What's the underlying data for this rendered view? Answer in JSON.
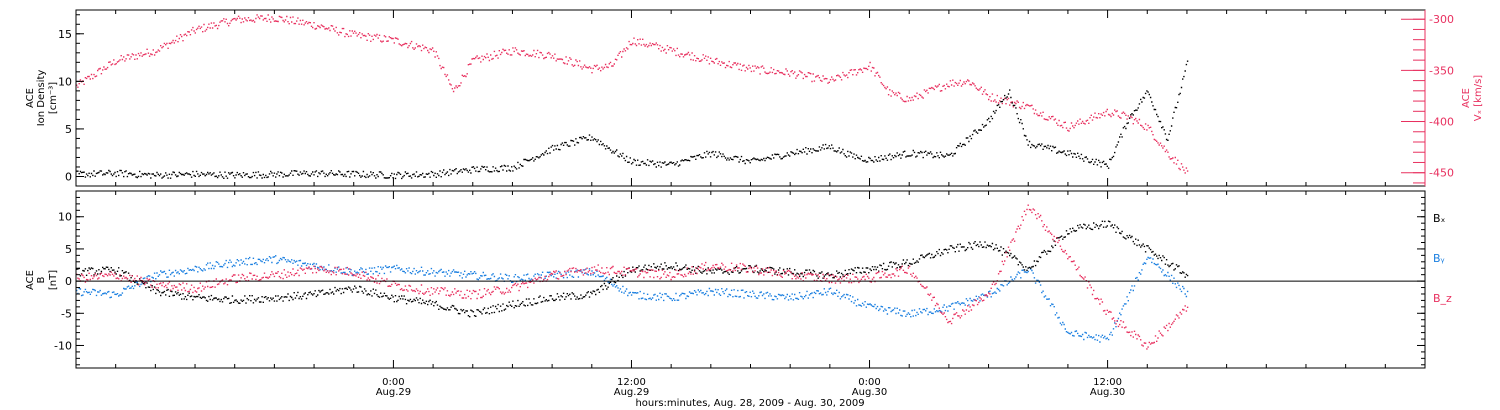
{
  "colors": {
    "black": "#000000",
    "pink": "#e8305f",
    "blue": "#1a7fe0"
  },
  "x_axis": {
    "title": "hours:minutes, Aug. 28, 2009 - Aug. 30, 2009",
    "range_hours": [
      -16,
      52
    ],
    "major_ticks": [
      {
        "hours": 0,
        "time": "0:00",
        "date": "Aug.29"
      },
      {
        "hours": 12,
        "time": "12:00",
        "date": "Aug.29"
      },
      {
        "hours": 24,
        "time": "0:00",
        "date": "Aug.30"
      },
      {
        "hours": 36,
        "time": "12:00",
        "date": "Aug.30"
      }
    ],
    "minor_step_hours": 2
  },
  "panels": {
    "top": {
      "left_axis": {
        "l1": "ACE",
        "l2": "Ion Density",
        "l3": "[cm⁻³]",
        "ticks": [
          "0",
          "5",
          "10",
          "15"
        ],
        "tick_values": [
          0,
          5,
          10,
          15
        ],
        "range": [
          -1,
          17.5
        ]
      },
      "right_axis": {
        "l1": "ACE",
        "l2": "Vₓ [km/s]",
        "ticks": [
          "-300",
          "-350",
          "-400",
          "-450"
        ],
        "tick_values": [
          -300,
          -350,
          -400,
          -450
        ],
        "range": [
          -463,
          -291
        ]
      }
    },
    "bottom": {
      "left_axis": {
        "l1": "ACE",
        "l2": "B",
        "l3": "[nT]",
        "ticks": [
          "10",
          "5",
          "0",
          "-5",
          "-10"
        ],
        "tick_values": [
          10,
          5,
          0,
          -5,
          -10
        ],
        "range": [
          -13.5,
          14
        ]
      },
      "legend": [
        {
          "label": "Bₓ",
          "color": "#000000"
        },
        {
          "label": "Bᵧ",
          "color": "#1a7fe0"
        },
        {
          "label": "B_z",
          "color": "#e8305f"
        }
      ]
    }
  },
  "chart_data": [
    {
      "type": "scatter",
      "title": "",
      "xlabel": "hours:minutes, Aug. 28, 2009 - Aug. 30, 2009",
      "ylabel": "ACE Ion Density [cm⁻³]",
      "ylim": [
        -1,
        17.5
      ],
      "y2label": "ACE Vₓ [km/s]",
      "y2lim": [
        -463,
        -291
      ],
      "series": [
        {
          "name": "Ion Density",
          "color": "#000000",
          "axis": "left",
          "x": [
            -16,
            -14,
            -12,
            -10,
            -8,
            -6,
            -4,
            -2,
            0,
            2,
            4,
            6,
            8,
            10,
            11,
            12,
            14,
            16,
            18,
            20,
            22,
            23,
            24,
            26,
            28,
            30,
            31,
            32,
            34,
            36,
            37,
            38,
            39,
            40
          ],
          "y": [
            0.3,
            0.4,
            0.2,
            0.3,
            0.2,
            0.3,
            0.4,
            0.3,
            0.2,
            0.3,
            0.8,
            1.0,
            3.0,
            4.2,
            2.8,
            1.6,
            1.3,
            2.5,
            1.6,
            2.5,
            3.2,
            2.3,
            1.8,
            2.5,
            2.2,
            6.0,
            9.0,
            3.5,
            2.5,
            1.2,
            6.0,
            9.0,
            4.0,
            12.0
          ]
        },
        {
          "name": "Vx",
          "color": "#e8305f",
          "axis": "right",
          "x": [
            -16,
            -14,
            -12,
            -10,
            -8,
            -6,
            -4,
            -2,
            0,
            2,
            3,
            4,
            6,
            8,
            10,
            11,
            12,
            14,
            16,
            18,
            20,
            22,
            24,
            25,
            26,
            28,
            29,
            30,
            32,
            34,
            36,
            37,
            38,
            39,
            40
          ],
          "y": [
            -365,
            -340,
            -330,
            -310,
            -300,
            -298,
            -305,
            -315,
            -320,
            -330,
            -370,
            -340,
            -330,
            -335,
            -348,
            -345,
            -320,
            -330,
            -340,
            -348,
            -352,
            -360,
            -345,
            -372,
            -378,
            -362,
            -360,
            -375,
            -385,
            -405,
            -390,
            -395,
            -405,
            -430,
            -450
          ]
        }
      ]
    },
    {
      "type": "scatter",
      "title": "",
      "xlabel": "hours:minutes, Aug. 28, 2009 - Aug. 30, 2009",
      "ylabel": "ACE B [nT]",
      "ylim": [
        -13.5,
        14
      ],
      "series": [
        {
          "name": "Bx",
          "color": "#000000",
          "x": [
            -16,
            -14,
            -12,
            -10,
            -8,
            -6,
            -4,
            -2,
            0,
            2,
            4,
            6,
            8,
            10,
            12,
            14,
            16,
            18,
            20,
            22,
            24,
            26,
            28,
            30,
            32,
            34,
            36,
            38,
            40
          ],
          "y": [
            1.5,
            1.8,
            -1.5,
            -2.5,
            -2.8,
            -2.5,
            -2.0,
            -1.0,
            -2.5,
            -3.5,
            -5.0,
            -3.5,
            -2.5,
            -2.0,
            2.0,
            2.5,
            1.5,
            2.0,
            1.5,
            1.0,
            2.0,
            3.0,
            5.0,
            6.0,
            2.0,
            8.0,
            9.0,
            5.0,
            1.0
          ]
        },
        {
          "name": "By",
          "color": "#1a7fe0",
          "x": [
            -16,
            -14,
            -12,
            -10,
            -8,
            -6,
            -4,
            -2,
            0,
            2,
            4,
            6,
            8,
            10,
            12,
            14,
            16,
            18,
            20,
            22,
            24,
            26,
            28,
            30,
            32,
            34,
            36,
            38,
            40
          ],
          "y": [
            -1.5,
            -2.0,
            1.0,
            2.0,
            3.0,
            3.5,
            2.5,
            1.5,
            2.0,
            1.5,
            1.0,
            0.5,
            1.0,
            1.5,
            -2.0,
            -2.5,
            -1.5,
            -2.0,
            -2.5,
            -1.5,
            -4.0,
            -5.0,
            -4.0,
            -2.0,
            2.0,
            -8.0,
            -9.0,
            4.0,
            -2.0
          ]
        },
        {
          "name": "Bz",
          "color": "#e8305f",
          "x": [
            -16,
            -14,
            -12,
            -10,
            -8,
            -6,
            -4,
            -2,
            0,
            2,
            4,
            6,
            8,
            10,
            12,
            14,
            16,
            18,
            20,
            22,
            24,
            26,
            28,
            30,
            32,
            34,
            36,
            38,
            40
          ],
          "y": [
            0.5,
            1.0,
            -0.5,
            -1.0,
            0.5,
            1.0,
            2.0,
            1.5,
            -0.5,
            -1.5,
            -2.0,
            -1.0,
            1.0,
            2.0,
            1.5,
            1.0,
            2.5,
            2.0,
            1.0,
            0.5,
            0.5,
            2.0,
            -6.0,
            -2.0,
            12.0,
            4.0,
            -5.0,
            -10.0,
            -4.0
          ]
        }
      ]
    }
  ]
}
